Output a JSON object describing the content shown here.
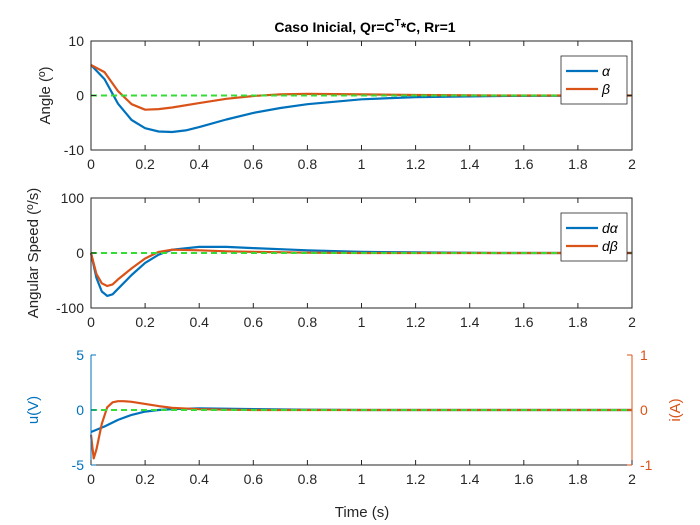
{
  "figure": {
    "title_main": "Caso Inicial, Qr=C",
    "title_sup": "T",
    "title_rest": "*C, Rr=1",
    "xlabel": "Time (s)"
  },
  "colors": {
    "blue": "#0072BD",
    "orange": "#D95319",
    "green": "#33DD33",
    "axis": "#262626"
  },
  "chart_data": [
    {
      "type": "line",
      "ylabel": "Angle (º)",
      "xlim": [
        0,
        2
      ],
      "ylim": [
        -10,
        10
      ],
      "xticks": [
        "0",
        "0.2",
        "0.4",
        "0.6",
        "0.8",
        "1",
        "1.2",
        "1.4",
        "1.6",
        "1.8",
        "2"
      ],
      "yticks": [
        "-10",
        "0",
        "10"
      ],
      "reference": 0,
      "legend": {
        "location": "top-right",
        "entries": [
          "α",
          "β"
        ]
      },
      "series": [
        {
          "name": "α",
          "color": "blue",
          "x": [
            0,
            0.05,
            0.1,
            0.15,
            0.2,
            0.25,
            0.3,
            0.35,
            0.4,
            0.5,
            0.6,
            0.7,
            0.8,
            1.0,
            1.2,
            1.5,
            2.0
          ],
          "y": [
            5.6,
            3.0,
            -1.5,
            -4.5,
            -6.0,
            -6.6,
            -6.7,
            -6.4,
            -5.8,
            -4.4,
            -3.2,
            -2.3,
            -1.6,
            -0.7,
            -0.3,
            -0.1,
            0
          ]
        },
        {
          "name": "β",
          "color": "orange",
          "x": [
            0,
            0.05,
            0.1,
            0.15,
            0.2,
            0.25,
            0.3,
            0.4,
            0.5,
            0.6,
            0.7,
            0.8,
            1.0,
            1.2,
            1.5,
            2.0
          ],
          "y": [
            5.6,
            4.3,
            0.8,
            -1.6,
            -2.6,
            -2.5,
            -2.2,
            -1.4,
            -0.6,
            -0.1,
            0.2,
            0.3,
            0.2,
            0.1,
            0,
            0
          ]
        }
      ]
    },
    {
      "type": "line",
      "ylabel": "Angular Speed (º/s)",
      "xlim": [
        0,
        2
      ],
      "ylim": [
        -100,
        100
      ],
      "xticks": [
        "0",
        "0.2",
        "0.4",
        "0.6",
        "0.8",
        "1",
        "1.2",
        "1.4",
        "1.6",
        "1.8",
        "2"
      ],
      "yticks": [
        "-100",
        "0",
        "100"
      ],
      "reference": 0,
      "legend": {
        "location": "top-right",
        "entries": [
          "dα",
          "dβ"
        ]
      },
      "series": [
        {
          "name": "dα",
          "color": "blue",
          "x": [
            0,
            0.02,
            0.04,
            0.06,
            0.08,
            0.1,
            0.15,
            0.2,
            0.25,
            0.3,
            0.4,
            0.5,
            0.6,
            0.8,
            1.0,
            1.2,
            1.5,
            2.0
          ],
          "y": [
            0,
            -45,
            -70,
            -78,
            -75,
            -65,
            -40,
            -18,
            -3,
            6,
            11,
            11,
            9,
            5,
            2,
            1,
            0,
            0
          ]
        },
        {
          "name": "dβ",
          "color": "orange",
          "x": [
            0,
            0.02,
            0.04,
            0.06,
            0.08,
            0.1,
            0.15,
            0.2,
            0.25,
            0.3,
            0.4,
            0.5,
            0.6,
            0.8,
            1.0,
            1.5,
            2.0
          ],
          "y": [
            0,
            -38,
            -55,
            -60,
            -57,
            -48,
            -28,
            -10,
            2,
            6,
            5,
            3,
            2,
            0.5,
            0,
            0,
            0
          ]
        }
      ]
    },
    {
      "type": "line",
      "ylabel": "u(V)",
      "ylabel_right": "i(A)",
      "xlim": [
        0,
        2
      ],
      "ylim": [
        -5,
        5
      ],
      "ylim_right": [
        -1,
        1
      ],
      "xticks": [
        "0",
        "0.2",
        "0.4",
        "0.6",
        "0.8",
        "1",
        "1.2",
        "1.4",
        "1.6",
        "1.8",
        "2"
      ],
      "yticks": [
        "-5",
        "0",
        "5"
      ],
      "yticks_right": [
        "-1",
        "0",
        "1"
      ],
      "reference": 0,
      "series": [
        {
          "name": "u",
          "color": "blue",
          "axis": "left",
          "x": [
            0,
            0.05,
            0.1,
            0.15,
            0.2,
            0.25,
            0.3,
            0.4,
            0.5,
            0.6,
            0.8,
            1.0,
            1.5,
            2.0
          ],
          "y": [
            -2.0,
            -1.5,
            -0.9,
            -0.45,
            -0.15,
            0,
            0.08,
            0.15,
            0.12,
            0.08,
            0.03,
            0,
            0,
            0
          ]
        },
        {
          "name": "i",
          "color": "orange",
          "axis": "right",
          "x": [
            0,
            0.01,
            0.02,
            0.04,
            0.06,
            0.08,
            0.1,
            0.12,
            0.15,
            0.2,
            0.25,
            0.3,
            0.4,
            0.5,
            0.6,
            0.8,
            1.0,
            2.0
          ],
          "y": [
            -0.45,
            -0.88,
            -0.72,
            -0.25,
            0.05,
            0.14,
            0.16,
            0.16,
            0.15,
            0.11,
            0.07,
            0.04,
            0.015,
            0.005,
            0,
            0,
            0,
            0
          ]
        }
      ]
    }
  ]
}
